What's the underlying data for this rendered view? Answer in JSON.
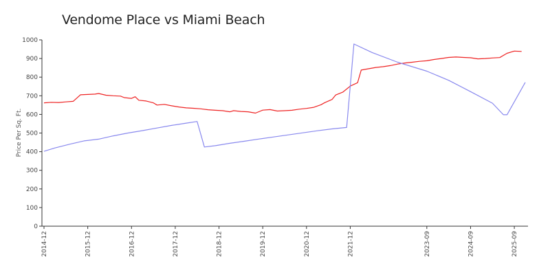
{
  "chart_data": {
    "type": "line",
    "title": "Vendome Place vs Miami Beach",
    "xlabel": "",
    "ylabel": "Price Per Sq. Ft.",
    "ylim": [
      0,
      1000
    ],
    "y_ticks": [
      0,
      100,
      200,
      300,
      400,
      500,
      600,
      700,
      800,
      900,
      1000
    ],
    "x_range": [
      "2014-12",
      "2025-12"
    ],
    "x_ticks": [
      "2014-12",
      "2015-12",
      "2016-12",
      "2017-12",
      "2018-12",
      "2019-12",
      "2020-12",
      "2021-12",
      "2023-09",
      "2024-09",
      "2025-09"
    ],
    "grid": false,
    "legend": "none",
    "series": [
      {
        "color": "#ee2222",
        "points": [
          [
            "2014-12",
            662
          ],
          [
            "2015-02",
            665
          ],
          [
            "2015-04",
            664
          ],
          [
            "2015-06",
            667
          ],
          [
            "2015-08",
            670
          ],
          [
            "2015-10",
            705
          ],
          [
            "2015-12",
            707
          ],
          [
            "2016-02",
            709
          ],
          [
            "2016-03",
            712
          ],
          [
            "2016-05",
            703
          ],
          [
            "2016-07",
            700
          ],
          [
            "2016-09",
            698
          ],
          [
            "2016-10",
            690
          ],
          [
            "2016-12",
            686
          ],
          [
            "2017-01",
            695
          ],
          [
            "2017-02",
            676
          ],
          [
            "2017-04",
            672
          ],
          [
            "2017-06",
            662
          ],
          [
            "2017-07",
            650
          ],
          [
            "2017-09",
            654
          ],
          [
            "2017-11",
            646
          ],
          [
            "2018-01",
            640
          ],
          [
            "2018-03",
            635
          ],
          [
            "2018-05",
            633
          ],
          [
            "2018-07",
            630
          ],
          [
            "2018-09",
            625
          ],
          [
            "2018-11",
            622
          ],
          [
            "2019-01",
            620
          ],
          [
            "2019-03",
            614
          ],
          [
            "2019-04",
            620
          ],
          [
            "2019-06",
            616
          ],
          [
            "2019-08",
            614
          ],
          [
            "2019-10",
            607
          ],
          [
            "2019-12",
            623
          ],
          [
            "2020-02",
            626
          ],
          [
            "2020-04",
            618
          ],
          [
            "2020-06",
            620
          ],
          [
            "2020-08",
            622
          ],
          [
            "2020-10",
            628
          ],
          [
            "2020-12",
            632
          ],
          [
            "2021-02",
            638
          ],
          [
            "2021-04",
            652
          ],
          [
            "2021-05",
            663
          ],
          [
            "2021-07",
            680
          ],
          [
            "2021-08",
            704
          ],
          [
            "2021-10",
            720
          ],
          [
            "2021-12",
            752
          ],
          [
            "2022-02",
            770
          ],
          [
            "2022-03",
            838
          ],
          [
            "2022-05",
            845
          ],
          [
            "2022-07",
            852
          ],
          [
            "2022-09",
            856
          ],
          [
            "2022-11",
            862
          ],
          [
            "2023-01",
            870
          ],
          [
            "2023-03",
            876
          ],
          [
            "2023-05",
            880
          ],
          [
            "2023-07",
            885
          ],
          [
            "2023-09",
            888
          ],
          [
            "2023-11",
            895
          ],
          [
            "2024-01",
            900
          ],
          [
            "2024-03",
            906
          ],
          [
            "2024-05",
            908
          ],
          [
            "2024-07",
            906
          ],
          [
            "2024-09",
            904
          ],
          [
            "2024-11",
            898
          ],
          [
            "2025-01",
            900
          ],
          [
            "2025-03",
            903
          ],
          [
            "2025-05",
            905
          ],
          [
            "2025-07",
            928
          ],
          [
            "2025-09",
            940
          ],
          [
            "2025-11",
            938
          ]
        ]
      },
      {
        "color": "#8888ee",
        "points": [
          [
            "2014-12",
            402
          ],
          [
            "2015-03",
            420
          ],
          [
            "2015-07",
            440
          ],
          [
            "2015-11",
            458
          ],
          [
            "2016-03",
            467
          ],
          [
            "2016-07",
            485
          ],
          [
            "2016-11",
            500
          ],
          [
            "2017-03",
            513
          ],
          [
            "2017-07",
            527
          ],
          [
            "2017-11",
            541
          ],
          [
            "2018-03",
            553
          ],
          [
            "2018-06",
            562
          ],
          [
            "2018-08",
            425
          ],
          [
            "2018-11",
            432
          ],
          [
            "2019-03",
            445
          ],
          [
            "2019-07",
            456
          ],
          [
            "2019-11",
            468
          ],
          [
            "2020-03",
            479
          ],
          [
            "2020-07",
            490
          ],
          [
            "2020-11",
            501
          ],
          [
            "2021-03",
            512
          ],
          [
            "2021-07",
            522
          ],
          [
            "2021-11",
            530
          ],
          [
            "2022-01",
            978
          ],
          [
            "2022-06",
            932
          ],
          [
            "2023-01",
            880
          ],
          [
            "2023-09",
            832
          ],
          [
            "2024-03",
            783
          ],
          [
            "2024-09",
            722
          ],
          [
            "2025-03",
            660
          ],
          [
            "2025-06",
            598
          ],
          [
            "2025-07",
            598
          ],
          [
            "2025-12",
            772
          ]
        ]
      }
    ]
  }
}
